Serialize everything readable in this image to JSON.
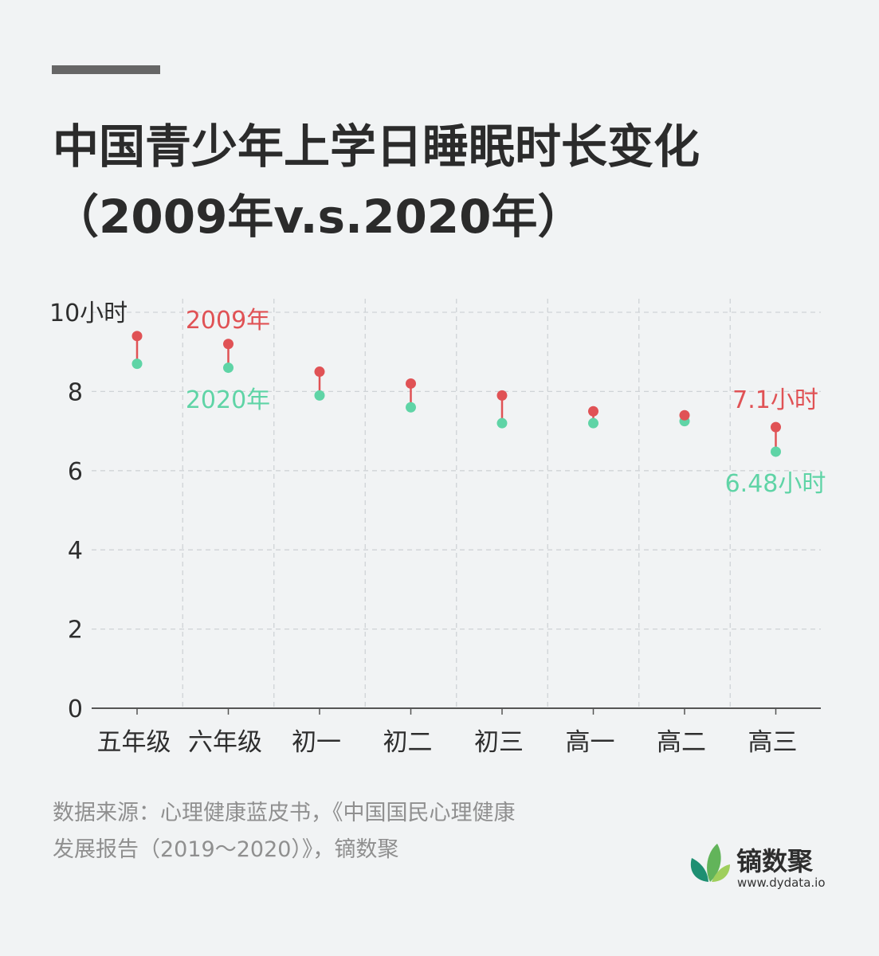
{
  "title": {
    "line1": "中国青少年上学日睡眠时长变化",
    "line2": "（2009年v.s.2020年）"
  },
  "chart_data": {
    "type": "dumbbell",
    "title": "中国青少年上学日睡眠时长变化（2009年v.s.2020年）",
    "categories": [
      "五年级",
      "六年级",
      "初一",
      "初二",
      "初三",
      "高一",
      "高二",
      "高三"
    ],
    "series": [
      {
        "name": "2009年",
        "color": "#e05255",
        "values": [
          9.4,
          9.2,
          8.5,
          8.2,
          7.9,
          7.5,
          7.4,
          7.1
        ]
      },
      {
        "name": "2020年",
        "color": "#5fd4a6",
        "values": [
          8.7,
          8.6,
          7.9,
          7.6,
          7.2,
          7.2,
          7.25,
          6.48
        ]
      }
    ],
    "y_ticks": [
      "0",
      "2",
      "4",
      "6",
      "8",
      "10小时"
    ],
    "ylim": [
      0,
      10
    ],
    "ylabel": "",
    "xlabel": "",
    "grid": true,
    "legend": {
      "series_2009": "2009年",
      "series_2020": "2020年"
    },
    "annotations": {
      "last_2009": "7.1小时",
      "last_2020": "6.48小时"
    },
    "connector_color": "#e05255",
    "grid_color": "#cfd3d6",
    "axis_color": "#555555"
  },
  "footer": {
    "source_line1": "数据来源：心理健康蓝皮书，《中国国民心理健康",
    "source_line2": "发展报告（2019～2020）》，镝数聚"
  },
  "logo": {
    "name": "镝数聚",
    "url": "www.dydata.io",
    "icon": "leaf-logo-icon",
    "colors": [
      "#1e8f72",
      "#62b45a",
      "#9fcf5c"
    ]
  }
}
